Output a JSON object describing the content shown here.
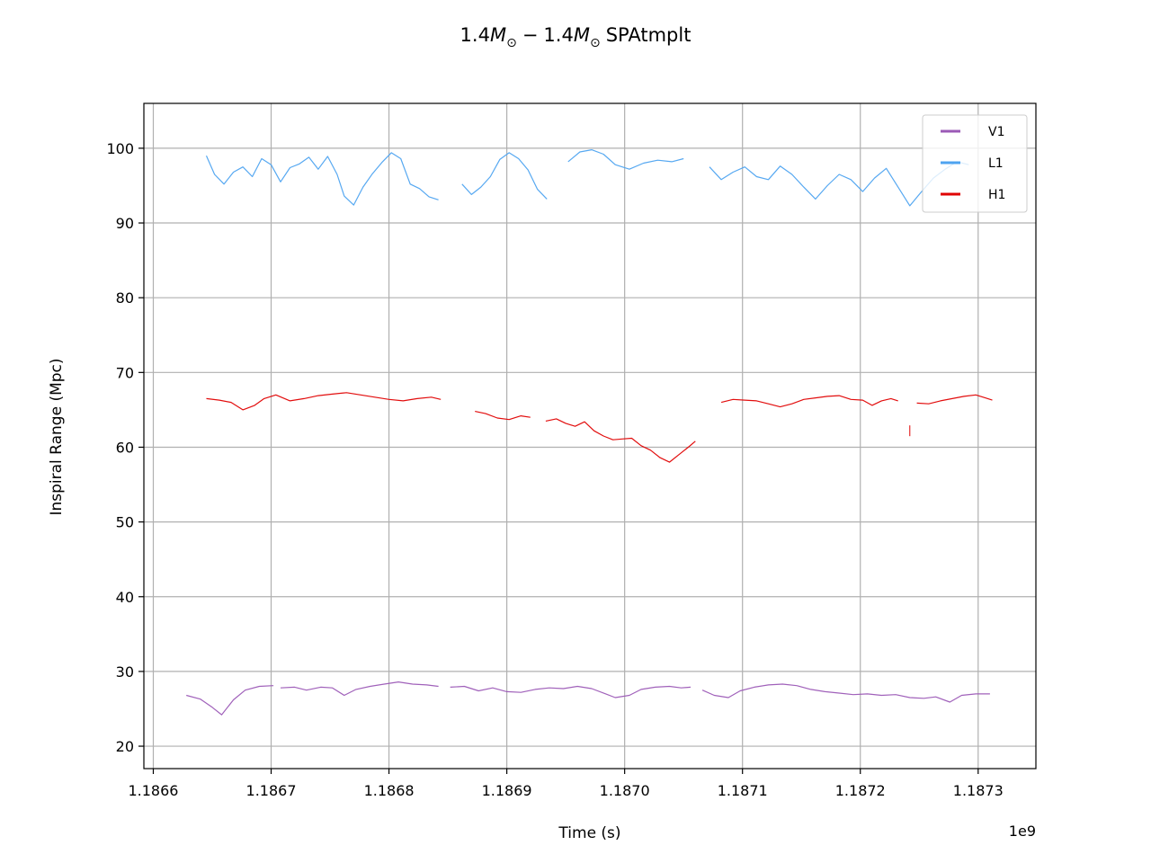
{
  "chart_data": {
    "type": "line",
    "title_prefix": "1.4",
    "title_mass_symbol": "M",
    "title_subscript": "⊙",
    "title_separator": "−",
    "title_suffix": "SPAtmplt",
    "xlabel": "Time (s)",
    "ylabel": "Inspiral Range (Mpc)",
    "x_offset_label": "1e9",
    "x_scale": 1000000000,
    "xlim": [
      1186592000,
      1187349000
    ],
    "ylim": [
      17,
      106
    ],
    "x_ticks": [
      1186600000,
      1186700000,
      1186800000,
      1186900000,
      1187000000,
      1187100000,
      1187200000,
      1187300000
    ],
    "x_tick_labels": [
      "1.1866",
      "1.1867",
      "1.1868",
      "1.1869",
      "1.1870",
      "1.1871",
      "1.1872",
      "1.1873"
    ],
    "y_ticks": [
      20,
      30,
      40,
      50,
      60,
      70,
      80,
      90,
      100
    ],
    "y_tick_labels": [
      "20",
      "30",
      "40",
      "50",
      "60",
      "70",
      "80",
      "90",
      "100"
    ],
    "grid": true,
    "legend_position": "top-right",
    "series": [
      {
        "name": "V1",
        "color": "#9b59b6",
        "segments": [
          [
            [
              1186628000,
              26.8
            ],
            [
              1186640000,
              26.3
            ],
            [
              1186650000,
              25.2
            ],
            [
              1186658000,
              24.2
            ],
            [
              1186668000,
              26.2
            ],
            [
              1186678000,
              27.5
            ],
            [
              1186690000,
              28.0
            ],
            [
              1186702000,
              28.1
            ]
          ],
          [
            [
              1186708000,
              27.8
            ],
            [
              1186720000,
              27.9
            ],
            [
              1186730000,
              27.5
            ],
            [
              1186742000,
              27.9
            ],
            [
              1186752000,
              27.8
            ],
            [
              1186762000,
              26.8
            ],
            [
              1186772000,
              27.6
            ],
            [
              1186784000,
              28.0
            ],
            [
              1186796000,
              28.3
            ],
            [
              1186808000,
              28.6
            ],
            [
              1186820000,
              28.3
            ],
            [
              1186832000,
              28.2
            ],
            [
              1186842000,
              28.0
            ]
          ],
          [
            [
              1186852000,
              27.9
            ],
            [
              1186864000,
              28.0
            ],
            [
              1186876000,
              27.4
            ],
            [
              1186888000,
              27.8
            ],
            [
              1186900000,
              27.3
            ],
            [
              1186912000,
              27.2
            ],
            [
              1186924000,
              27.6
            ],
            [
              1186936000,
              27.8
            ],
            [
              1186948000,
              27.7
            ],
            [
              1186960000,
              28.0
            ],
            [
              1186972000,
              27.7
            ],
            [
              1186984000,
              27.0
            ],
            [
              1186992000,
              26.5
            ],
            [
              1187004000,
              26.8
            ],
            [
              1187014000,
              27.6
            ],
            [
              1187026000,
              27.9
            ],
            [
              1187038000,
              28.0
            ],
            [
              1187048000,
              27.8
            ],
            [
              1187056000,
              27.9
            ]
          ],
          [
            [
              1187066000,
              27.5
            ],
            [
              1187076000,
              26.8
            ],
            [
              1187088000,
              26.5
            ],
            [
              1187098000,
              27.4
            ],
            [
              1187110000,
              27.9
            ],
            [
              1187122000,
              28.2
            ],
            [
              1187134000,
              28.3
            ],
            [
              1187146000,
              28.1
            ],
            [
              1187158000,
              27.6
            ],
            [
              1187170000,
              27.3
            ],
            [
              1187182000,
              27.1
            ],
            [
              1187194000,
              26.9
            ],
            [
              1187206000,
              27.0
            ],
            [
              1187218000,
              26.8
            ],
            [
              1187230000,
              26.9
            ],
            [
              1187242000,
              26.5
            ],
            [
              1187254000,
              26.4
            ],
            [
              1187264000,
              26.6
            ],
            [
              1187276000,
              25.9
            ],
            [
              1187286000,
              26.8
            ],
            [
              1187298000,
              27.0
            ],
            [
              1187310000,
              27.0
            ]
          ]
        ]
      },
      {
        "name": "L1",
        "color": "#4da3f0",
        "segments": [
          [
            [
              1186645000,
              99.0
            ],
            [
              1186652000,
              96.5
            ],
            [
              1186660000,
              95.2
            ],
            [
              1186668000,
              96.8
            ],
            [
              1186676000,
              97.5
            ],
            [
              1186684000,
              96.2
            ],
            [
              1186692000,
              98.6
            ],
            [
              1186700000,
              97.8
            ],
            [
              1186708000,
              95.5
            ],
            [
              1186716000,
              97.4
            ],
            [
              1186724000,
              97.9
            ],
            [
              1186732000,
              98.8
            ],
            [
              1186740000,
              97.2
            ],
            [
              1186748000,
              98.9
            ],
            [
              1186756000,
              96.5
            ],
            [
              1186762000,
              93.6
            ],
            [
              1186770000,
              92.4
            ],
            [
              1186778000,
              94.8
            ],
            [
              1186786000,
              96.6
            ],
            [
              1186794000,
              98.1
            ],
            [
              1186802000,
              99.4
            ],
            [
              1186810000,
              98.6
            ],
            [
              1186818000,
              95.2
            ],
            [
              1186826000,
              94.6
            ],
            [
              1186834000,
              93.5
            ],
            [
              1186842000,
              93.1
            ]
          ],
          [
            [
              1186862000,
              95.2
            ],
            [
              1186870000,
              93.8
            ],
            [
              1186878000,
              94.8
            ],
            [
              1186886000,
              96.2
            ],
            [
              1186894000,
              98.5
            ],
            [
              1186902000,
              99.4
            ],
            [
              1186910000,
              98.6
            ],
            [
              1186918000,
              97.1
            ],
            [
              1186926000,
              94.5
            ],
            [
              1186934000,
              93.2
            ]
          ],
          [
            [
              1186952000,
              98.2
            ],
            [
              1186962000,
              99.5
            ],
            [
              1186972000,
              99.8
            ],
            [
              1186982000,
              99.2
            ],
            [
              1186992000,
              97.8
            ],
            [
              1187004000,
              97.2
            ],
            [
              1187016000,
              98.0
            ],
            [
              1187028000,
              98.4
            ],
            [
              1187040000,
              98.2
            ],
            [
              1187050000,
              98.6
            ]
          ],
          [
            [
              1187072000,
              97.5
            ],
            [
              1187082000,
              95.8
            ],
            [
              1187092000,
              96.8
            ],
            [
              1187102000,
              97.5
            ],
            [
              1187112000,
              96.2
            ],
            [
              1187122000,
              95.8
            ],
            [
              1187132000,
              97.6
            ],
            [
              1187142000,
              96.5
            ],
            [
              1187152000,
              94.8
            ],
            [
              1187162000,
              93.2
            ],
            [
              1187172000,
              95.0
            ],
            [
              1187182000,
              96.5
            ],
            [
              1187192000,
              95.8
            ],
            [
              1187202000,
              94.2
            ],
            [
              1187212000,
              96.0
            ],
            [
              1187222000,
              97.3
            ],
            [
              1187232000,
              94.8
            ],
            [
              1187242000,
              92.3
            ],
            [
              1187252000,
              94.2
            ],
            [
              1187262000,
              96.0
            ],
            [
              1187272000,
              97.2
            ],
            [
              1187282000,
              98.2
            ],
            [
              1187292000,
              97.8
            ]
          ]
        ]
      },
      {
        "name": "H1",
        "color": "#e00000",
        "segments": [
          [
            [
              1186645000,
              66.5
            ],
            [
              1186656000,
              66.3
            ],
            [
              1186666000,
              66.0
            ],
            [
              1186676000,
              65.0
            ],
            [
              1186686000,
              65.6
            ],
            [
              1186694000,
              66.5
            ],
            [
              1186704000,
              67.0
            ],
            [
              1186716000,
              66.2
            ],
            [
              1186728000,
              66.5
            ],
            [
              1186740000,
              66.9
            ],
            [
              1186752000,
              67.1
            ],
            [
              1186764000,
              67.3
            ],
            [
              1186776000,
              67.0
            ],
            [
              1186788000,
              66.7
            ],
            [
              1186800000,
              66.4
            ],
            [
              1186812000,
              66.2
            ],
            [
              1186824000,
              66.5
            ],
            [
              1186836000,
              66.7
            ],
            [
              1186844000,
              66.4
            ]
          ],
          [
            [
              1186873000,
              64.8
            ],
            [
              1186882000,
              64.5
            ],
            [
              1186892000,
              63.9
            ],
            [
              1186902000,
              63.7
            ],
            [
              1186912000,
              64.2
            ],
            [
              1186920000,
              64.0
            ]
          ],
          [
            [
              1186933000,
              63.5
            ],
            [
              1186942000,
              63.8
            ],
            [
              1186950000,
              63.2
            ],
            [
              1186958000,
              62.8
            ],
            [
              1186966000,
              63.4
            ],
            [
              1186974000,
              62.2
            ],
            [
              1186982000,
              61.5
            ],
            [
              1186990000,
              61.0
            ],
            [
              1186998000,
              61.1
            ],
            [
              1187006000,
              61.2
            ],
            [
              1187014000,
              60.2
            ],
            [
              1187022000,
              59.6
            ],
            [
              1187030000,
              58.6
            ],
            [
              1187038000,
              58.0
            ],
            [
              1187046000,
              59.0
            ],
            [
              1187054000,
              60.0
            ],
            [
              1187060000,
              60.8
            ]
          ],
          [
            [
              1187082000,
              66.0
            ],
            [
              1187092000,
              66.4
            ],
            [
              1187102000,
              66.3
            ],
            [
              1187112000,
              66.2
            ],
            [
              1187122000,
              65.8
            ],
            [
              1187132000,
              65.4
            ],
            [
              1187142000,
              65.8
            ],
            [
              1187152000,
              66.4
            ],
            [
              1187162000,
              66.6
            ],
            [
              1187172000,
              66.8
            ],
            [
              1187182000,
              66.9
            ],
            [
              1187192000,
              66.4
            ],
            [
              1187202000,
              66.3
            ],
            [
              1187210000,
              65.6
            ],
            [
              1187218000,
              66.2
            ],
            [
              1187226000,
              66.5
            ],
            [
              1187232000,
              66.2
            ]
          ],
          [
            [
              1187242000,
              62.2
            ]
          ],
          [
            [
              1187248000,
              65.9
            ],
            [
              1187258000,
              65.8
            ],
            [
              1187268000,
              66.2
            ],
            [
              1187278000,
              66.5
            ],
            [
              1187288000,
              66.8
            ],
            [
              1187298000,
              67.0
            ],
            [
              1187306000,
              66.6
            ],
            [
              1187312000,
              66.3
            ]
          ]
        ]
      }
    ]
  }
}
